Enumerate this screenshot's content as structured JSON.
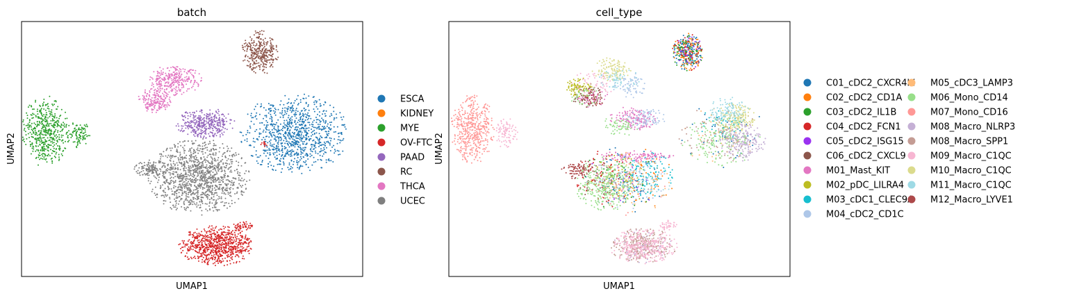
{
  "chart_data": [
    {
      "type": "scatter",
      "title": "batch",
      "xlabel": "UMAP1",
      "ylabel": "UMAP2",
      "grid": false,
      "axis_ticks": "none",
      "legend_placement": "right",
      "series": [
        {
          "name": "ESCA",
          "color": "#1f77b4",
          "clusters": [
            {
              "cx": 0.8,
              "cy": 0.44,
              "rx": 0.16,
              "ry": 0.16,
              "n": 950
            }
          ]
        },
        {
          "name": "KIDNEY",
          "color": "#ff7f0e",
          "clusters": []
        },
        {
          "name": "MYE",
          "color": "#2ca02c",
          "clusters": [
            {
              "cx": 0.07,
              "cy": 0.43,
              "rx": 0.07,
              "ry": 0.14,
              "n": 500
            },
            {
              "cx": 0.17,
              "cy": 0.44,
              "rx": 0.035,
              "ry": 0.06,
              "n": 90
            }
          ]
        },
        {
          "name": "OV-FTC",
          "color": "#d62728",
          "clusters": [
            {
              "cx": 0.57,
              "cy": 0.88,
              "rx": 0.11,
              "ry": 0.08,
              "n": 780
            },
            {
              "cx": 0.65,
              "cy": 0.8,
              "rx": 0.03,
              "ry": 0.02,
              "n": 50
            },
            {
              "cx": 0.71,
              "cy": 0.48,
              "rx": 0.01,
              "ry": 0.015,
              "n": 12
            }
          ]
        },
        {
          "name": "PAAD",
          "color": "#9467bd",
          "clusters": [
            {
              "cx": 0.54,
              "cy": 0.4,
              "rx": 0.09,
              "ry": 0.06,
              "n": 380
            }
          ]
        },
        {
          "name": "RC",
          "color": "#8c564b",
          "clusters": [
            {
              "cx": 0.7,
              "cy": 0.12,
              "rx": 0.055,
              "ry": 0.09,
              "n": 330
            }
          ]
        },
        {
          "name": "THCA",
          "color": "#e377c2",
          "clusters": [
            {
              "cx": 0.45,
              "cy": 0.23,
              "rx": 0.08,
              "ry": 0.06,
              "n": 300
            },
            {
              "cx": 0.39,
              "cy": 0.31,
              "rx": 0.05,
              "ry": 0.05,
              "n": 190
            }
          ]
        },
        {
          "name": "UCEC",
          "color": "#7f7f7f",
          "clusters": [
            {
              "cx": 0.52,
              "cy": 0.61,
              "rx": 0.15,
              "ry": 0.15,
              "n": 1250
            },
            {
              "cx": 0.38,
              "cy": 0.58,
              "rx": 0.05,
              "ry": 0.04,
              "n": 120
            }
          ]
        }
      ]
    },
    {
      "type": "scatter",
      "title": "cell_type",
      "xlabel": "UMAP1",
      "ylabel": "UMAP2",
      "grid": false,
      "axis_ticks": "none",
      "legend_placement": "right",
      "legend_columns": 2,
      "series": [
        {
          "name": "C01_cDC2_CXCR4hi",
          "color": "#1f77b4",
          "clusters": [
            {
              "cx": 0.7,
              "cy": 0.12,
              "rx": 0.045,
              "ry": 0.075,
              "n": 160
            },
            {
              "cx": 0.52,
              "cy": 0.62,
              "rx": 0.13,
              "ry": 0.13,
              "n": 70
            },
            {
              "cx": 0.8,
              "cy": 0.44,
              "rx": 0.14,
              "ry": 0.14,
              "n": 40
            }
          ]
        },
        {
          "name": "C02_cDC2_CD1A",
          "color": "#ff7f0e",
          "clusters": [
            {
              "cx": 0.7,
              "cy": 0.12,
              "rx": 0.045,
              "ry": 0.075,
              "n": 90
            },
            {
              "cx": 0.56,
              "cy": 0.62,
              "rx": 0.11,
              "ry": 0.12,
              "n": 50
            }
          ]
        },
        {
          "name": "C03_cDC2_IL1B",
          "color": "#2ca02c",
          "clusters": [
            {
              "cx": 0.7,
              "cy": 0.12,
              "rx": 0.045,
              "ry": 0.075,
              "n": 70
            },
            {
              "cx": 0.5,
              "cy": 0.62,
              "rx": 0.12,
              "ry": 0.12,
              "n": 40
            }
          ]
        },
        {
          "name": "C04_cDC2_FCN1",
          "color": "#d62728",
          "clusters": [
            {
              "cx": 0.7,
              "cy": 0.12,
              "rx": 0.045,
              "ry": 0.075,
              "n": 50
            },
            {
              "cx": 0.46,
              "cy": 0.62,
              "rx": 0.1,
              "ry": 0.12,
              "n": 70
            }
          ]
        },
        {
          "name": "C05_cDC2_ISG15",
          "color": "#9a32f0",
          "clusters": [
            {
              "cx": 0.7,
              "cy": 0.12,
              "rx": 0.045,
              "ry": 0.075,
              "n": 30
            },
            {
              "cx": 0.52,
              "cy": 0.62,
              "rx": 0.12,
              "ry": 0.12,
              "n": 20
            }
          ]
        },
        {
          "name": "C06_cDC2_CXCL9",
          "color": "#8c564b",
          "clusters": [
            {
              "cx": 0.41,
              "cy": 0.29,
              "rx": 0.05,
              "ry": 0.05,
              "n": 60
            },
            {
              "cx": 0.44,
              "cy": 0.62,
              "rx": 0.09,
              "ry": 0.1,
              "n": 40
            }
          ]
        },
        {
          "name": "M01_Mast_KIT",
          "color": "#e377c2",
          "clusters": [
            {
              "cx": 0.54,
              "cy": 0.38,
              "rx": 0.07,
              "ry": 0.05,
              "n": 150
            },
            {
              "cx": 0.55,
              "cy": 0.53,
              "rx": 0.11,
              "ry": 0.025,
              "n": 120
            },
            {
              "cx": 0.42,
              "cy": 0.3,
              "rx": 0.05,
              "ry": 0.04,
              "n": 50
            }
          ]
        },
        {
          "name": "M02_pDC_LILRA4",
          "color": "#bcbd22",
          "clusters": [
            {
              "cx": 0.38,
              "cy": 0.26,
              "rx": 0.045,
              "ry": 0.04,
              "n": 80
            },
            {
              "cx": 0.49,
              "cy": 0.61,
              "rx": 0.11,
              "ry": 0.11,
              "n": 50
            }
          ]
        },
        {
          "name": "M03_cDC1_CLEC9A",
          "color": "#17becf",
          "clusters": [
            {
              "cx": 0.58,
              "cy": 0.6,
              "rx": 0.08,
              "ry": 0.09,
              "n": 110
            },
            {
              "cx": 0.8,
              "cy": 0.4,
              "rx": 0.07,
              "ry": 0.06,
              "n": 50
            }
          ]
        },
        {
          "name": "M04_cDC2_CD1C",
          "color": "#aec7e8",
          "clusters": [
            {
              "cx": 0.57,
              "cy": 0.38,
              "rx": 0.07,
              "ry": 0.05,
              "n": 90
            },
            {
              "cx": 0.53,
              "cy": 0.25,
              "rx": 0.05,
              "ry": 0.05,
              "n": 70
            },
            {
              "cx": 0.53,
              "cy": 0.64,
              "rx": 0.12,
              "ry": 0.12,
              "n": 60
            }
          ]
        },
        {
          "name": "M05_cDC3_LAMP3",
          "color": "#ffbb78",
          "clusters": [
            {
              "cx": 0.54,
              "cy": 0.63,
              "rx": 0.12,
              "ry": 0.12,
              "n": 70
            },
            {
              "cx": 0.8,
              "cy": 0.45,
              "rx": 0.12,
              "ry": 0.12,
              "n": 40
            }
          ]
        },
        {
          "name": "M06_Mono_CD14",
          "color": "#98df8a",
          "clusters": [
            {
              "cx": 0.46,
              "cy": 0.64,
              "rx": 0.09,
              "ry": 0.11,
              "n": 320
            },
            {
              "cx": 0.8,
              "cy": 0.47,
              "rx": 0.12,
              "ry": 0.1,
              "n": 180
            },
            {
              "cx": 0.5,
              "cy": 0.41,
              "rx": 0.06,
              "ry": 0.04,
              "n": 60
            },
            {
              "cx": 0.4,
              "cy": 0.29,
              "rx": 0.05,
              "ry": 0.05,
              "n": 40
            }
          ]
        },
        {
          "name": "M07_Mono_CD16",
          "color": "#ff9896",
          "clusters": [
            {
              "cx": 0.07,
              "cy": 0.42,
              "rx": 0.065,
              "ry": 0.14,
              "n": 480
            },
            {
              "cx": 0.52,
              "cy": 0.64,
              "rx": 0.12,
              "ry": 0.12,
              "n": 40
            }
          ]
        },
        {
          "name": "M08_Macro_NLRP3",
          "color": "#c5b0d5",
          "clusters": [
            {
              "cx": 0.86,
              "cy": 0.47,
              "rx": 0.07,
              "ry": 0.08,
              "n": 200
            },
            {
              "cx": 0.57,
              "cy": 0.88,
              "rx": 0.09,
              "ry": 0.07,
              "n": 80
            },
            {
              "cx": 0.5,
              "cy": 0.62,
              "rx": 0.1,
              "ry": 0.1,
              "n": 40
            }
          ]
        },
        {
          "name": "M08_Macro_SPP1",
          "color": "#c49c94",
          "clusters": [
            {
              "cx": 0.57,
              "cy": 0.88,
              "rx": 0.1,
              "ry": 0.07,
              "n": 260
            },
            {
              "cx": 0.79,
              "cy": 0.44,
              "rx": 0.12,
              "ry": 0.12,
              "n": 80
            }
          ]
        },
        {
          "name": "M09_Macro_C1QC",
          "color": "#f7b6d2",
          "clusters": [
            {
              "cx": 0.57,
              "cy": 0.88,
              "rx": 0.1,
              "ry": 0.07,
              "n": 340
            },
            {
              "cx": 0.17,
              "cy": 0.44,
              "rx": 0.035,
              "ry": 0.06,
              "n": 90
            },
            {
              "cx": 0.64,
              "cy": 0.8,
              "rx": 0.03,
              "ry": 0.02,
              "n": 40
            },
            {
              "cx": 0.43,
              "cy": 0.24,
              "rx": 0.07,
              "ry": 0.05,
              "n": 60
            }
          ]
        },
        {
          "name": "M10_Macro_C1QC",
          "color": "#dbdb8d",
          "clusters": [
            {
              "cx": 0.48,
              "cy": 0.19,
              "rx": 0.06,
              "ry": 0.05,
              "n": 120
            },
            {
              "cx": 0.84,
              "cy": 0.38,
              "rx": 0.06,
              "ry": 0.06,
              "n": 150
            }
          ]
        },
        {
          "name": "M11_Macro_C1QC",
          "color": "#9edae5",
          "clusters": [
            {
              "cx": 0.82,
              "cy": 0.35,
              "rx": 0.06,
              "ry": 0.06,
              "n": 100
            },
            {
              "cx": 0.5,
              "cy": 0.23,
              "rx": 0.06,
              "ry": 0.05,
              "n": 60
            },
            {
              "cx": 0.56,
              "cy": 0.62,
              "rx": 0.1,
              "ry": 0.1,
              "n": 30
            }
          ]
        },
        {
          "name": "M12_Macro_LYVE1",
          "color": "#ad494a",
          "clusters": [
            {
              "cx": 0.38,
              "cy": 0.58,
              "rx": 0.05,
              "ry": 0.04,
              "n": 90
            },
            {
              "cx": 0.42,
              "cy": 0.3,
              "rx": 0.04,
              "ry": 0.04,
              "n": 40
            }
          ]
        }
      ]
    }
  ]
}
